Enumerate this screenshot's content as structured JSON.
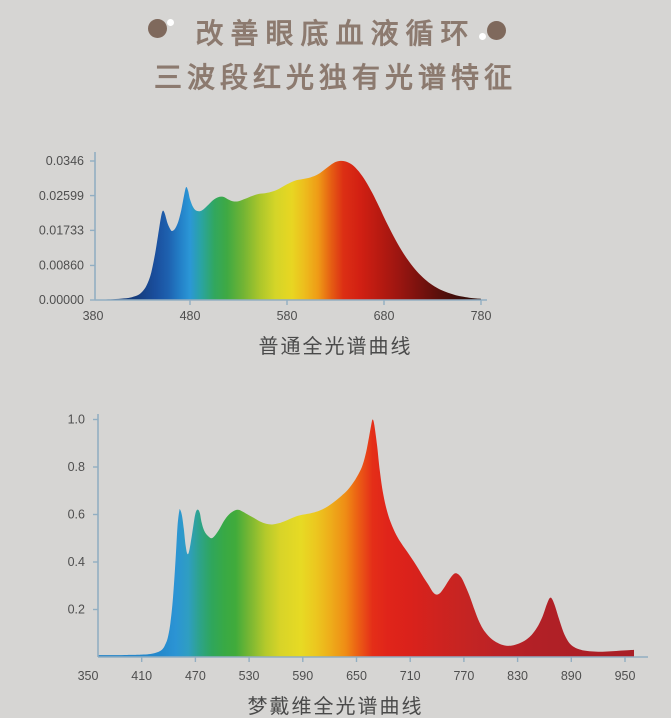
{
  "page": {
    "background": "#d6d5d3"
  },
  "header": {
    "title": "改善眼底血液循环",
    "subtitle": "三波段红光独有光谱特征",
    "text_color": "#8c7a6f",
    "deco_circle_color": "#7f695c",
    "deco_dot_color": "#ffffff"
  },
  "chart_data": [
    {
      "type": "area",
      "caption": "普通全光谱曲线",
      "xlabel": "",
      "ylabel": "",
      "x_range": [
        380,
        780
      ],
      "y_range": [
        0,
        0.0346
      ],
      "grid": false,
      "legend": "none",
      "axis_color": "#92aec2",
      "tick_label_color": "#4f4f4f",
      "x_ticks": [
        380,
        480,
        580,
        680,
        780
      ],
      "y_ticks": [
        {
          "label": "0.0346",
          "value": 0.0346
        },
        {
          "label": "0.02599",
          "value": 0.02599
        },
        {
          "label": "0.01733",
          "value": 0.01733
        },
        {
          "label": "0.00860",
          "value": 0.0086
        },
        {
          "label": "0.00000",
          "value": 0.0
        }
      ],
      "points": [
        [
          383,
          0.0001
        ],
        [
          400,
          0.0002
        ],
        [
          412,
          0.0004
        ],
        [
          420,
          0.0007
        ],
        [
          427,
          0.0013
        ],
        [
          432,
          0.0024
        ],
        [
          436,
          0.004
        ],
        [
          440,
          0.0068
        ],
        [
          444,
          0.0115
        ],
        [
          447,
          0.016
        ],
        [
          450,
          0.0205
        ],
        [
          452,
          0.0222
        ],
        [
          454,
          0.0215
        ],
        [
          457,
          0.019
        ],
        [
          460,
          0.0175
        ],
        [
          462,
          0.0172
        ],
        [
          465,
          0.0179
        ],
        [
          468,
          0.0196
        ],
        [
          471,
          0.0224
        ],
        [
          474,
          0.0262
        ],
        [
          476,
          0.0281
        ],
        [
          478,
          0.0272
        ],
        [
          480,
          0.0251
        ],
        [
          483,
          0.0232
        ],
        [
          486,
          0.0223
        ],
        [
          490,
          0.0221
        ],
        [
          494,
          0.0226
        ],
        [
          499,
          0.0237
        ],
        [
          504,
          0.0249
        ],
        [
          509,
          0.0256
        ],
        [
          514,
          0.0257
        ],
        [
          519,
          0.0251
        ],
        [
          524,
          0.0246
        ],
        [
          530,
          0.0246
        ],
        [
          537,
          0.0252
        ],
        [
          544,
          0.0259
        ],
        [
          551,
          0.0264
        ],
        [
          558,
          0.0266
        ],
        [
          565,
          0.027
        ],
        [
          572,
          0.0277
        ],
        [
          580,
          0.0288
        ],
        [
          588,
          0.0297
        ],
        [
          596,
          0.0301
        ],
        [
          604,
          0.0305
        ],
        [
          612,
          0.0313
        ],
        [
          620,
          0.0327
        ],
        [
          628,
          0.0341
        ],
        [
          634,
          0.0346
        ],
        [
          640,
          0.0345
        ],
        [
          647,
          0.0337
        ],
        [
          654,
          0.032
        ],
        [
          661,
          0.0296
        ],
        [
          668,
          0.0266
        ],
        [
          675,
          0.0232
        ],
        [
          682,
          0.0196
        ],
        [
          690,
          0.0158
        ],
        [
          698,
          0.0124
        ],
        [
          706,
          0.0095
        ],
        [
          714,
          0.0071
        ],
        [
          722,
          0.0052
        ],
        [
          730,
          0.0037
        ],
        [
          738,
          0.0026
        ],
        [
          746,
          0.0018
        ],
        [
          754,
          0.0012
        ],
        [
          762,
          0.0008
        ],
        [
          770,
          0.0005
        ],
        [
          780,
          0.0003
        ]
      ],
      "gradient_stops": [
        [
          380,
          "#14386f"
        ],
        [
          425,
          "#153c7d"
        ],
        [
          445,
          "#1a4f9e"
        ],
        [
          458,
          "#1e62b0"
        ],
        [
          470,
          "#2380c8"
        ],
        [
          480,
          "#2b97d6"
        ],
        [
          492,
          "#2aa4a0"
        ],
        [
          505,
          "#31a75f"
        ],
        [
          518,
          "#3fa943"
        ],
        [
          535,
          "#72b434"
        ],
        [
          552,
          "#abc62b"
        ],
        [
          568,
          "#d4d528"
        ],
        [
          585,
          "#e8d622"
        ],
        [
          598,
          "#edbd1d"
        ],
        [
          612,
          "#ef9b16"
        ],
        [
          626,
          "#e55c13"
        ],
        [
          638,
          "#dc2f14"
        ],
        [
          655,
          "#d22013"
        ],
        [
          675,
          "#b81a11"
        ],
        [
          695,
          "#9c1611"
        ],
        [
          715,
          "#7c120e"
        ],
        [
          735,
          "#5c100c"
        ],
        [
          755,
          "#400f0b"
        ],
        [
          780,
          "#2b0e09"
        ]
      ]
    },
    {
      "type": "area",
      "caption": "梦戴维全光谱曲线",
      "xlabel": "",
      "ylabel": "",
      "x_range": [
        350,
        960
      ],
      "y_range": [
        0,
        1.0
      ],
      "grid": false,
      "legend": "none",
      "axis_color": "#92aec2",
      "tick_label_color": "#4f4f4f",
      "x_ticks": [
        350,
        410,
        470,
        530,
        590,
        650,
        710,
        770,
        830,
        890,
        950
      ],
      "y_ticks": [
        {
          "label": "1.0",
          "value": 1.0
        },
        {
          "label": "0.8",
          "value": 0.8
        },
        {
          "label": "0.6",
          "value": 0.6
        },
        {
          "label": "0.4",
          "value": 0.4
        },
        {
          "label": "0.2",
          "value": 0.2
        }
      ],
      "points": [
        [
          361,
          0.008
        ],
        [
          380,
          0.008
        ],
        [
          400,
          0.009
        ],
        [
          410,
          0.01
        ],
        [
          418,
          0.012
        ],
        [
          424,
          0.016
        ],
        [
          429,
          0.022
        ],
        [
          433,
          0.032
        ],
        [
          436,
          0.05
        ],
        [
          439,
          0.08
        ],
        [
          442,
          0.14
        ],
        [
          445,
          0.25
        ],
        [
          448,
          0.42
        ],
        [
          450,
          0.55
        ],
        [
          452,
          0.615
        ],
        [
          453,
          0.62
        ],
        [
          455,
          0.595
        ],
        [
          457,
          0.54
        ],
        [
          459,
          0.47
        ],
        [
          461,
          0.435
        ],
        [
          463,
          0.445
        ],
        [
          466,
          0.51
        ],
        [
          469,
          0.585
        ],
        [
          471,
          0.615
        ],
        [
          473,
          0.62
        ],
        [
          475,
          0.605
        ],
        [
          477,
          0.565
        ],
        [
          480,
          0.53
        ],
        [
          484,
          0.51
        ],
        [
          488,
          0.5
        ],
        [
          492,
          0.512
        ],
        [
          497,
          0.54
        ],
        [
          502,
          0.573
        ],
        [
          507,
          0.598
        ],
        [
          512,
          0.613
        ],
        [
          517,
          0.62
        ],
        [
          522,
          0.614
        ],
        [
          528,
          0.601
        ],
        [
          535,
          0.586
        ],
        [
          542,
          0.571
        ],
        [
          549,
          0.561
        ],
        [
          556,
          0.558
        ],
        [
          563,
          0.563
        ],
        [
          571,
          0.574
        ],
        [
          579,
          0.587
        ],
        [
          586,
          0.596
        ],
        [
          593,
          0.601
        ],
        [
          601,
          0.607
        ],
        [
          609,
          0.617
        ],
        [
          617,
          0.632
        ],
        [
          625,
          0.653
        ],
        [
          633,
          0.678
        ],
        [
          640,
          0.703
        ],
        [
          646,
          0.732
        ],
        [
          651,
          0.762
        ],
        [
          656,
          0.8
        ],
        [
          660,
          0.85
        ],
        [
          663,
          0.905
        ],
        [
          666,
          0.968
        ],
        [
          668,
          1.0
        ],
        [
          670,
          0.975
        ],
        [
          673,
          0.89
        ],
        [
          676,
          0.785
        ],
        [
          680,
          0.682
        ],
        [
          685,
          0.603
        ],
        [
          690,
          0.55
        ],
        [
          696,
          0.503
        ],
        [
          702,
          0.468
        ],
        [
          708,
          0.436
        ],
        [
          714,
          0.402
        ],
        [
          720,
          0.366
        ],
        [
          726,
          0.329
        ],
        [
          731,
          0.3
        ],
        [
          735,
          0.275
        ],
        [
          739,
          0.263
        ],
        [
          743,
          0.268
        ],
        [
          748,
          0.292
        ],
        [
          753,
          0.322
        ],
        [
          757,
          0.343
        ],
        [
          760,
          0.352
        ],
        [
          763,
          0.35
        ],
        [
          767,
          0.335
        ],
        [
          771,
          0.305
        ],
        [
          776,
          0.26
        ],
        [
          781,
          0.208
        ],
        [
          786,
          0.158
        ],
        [
          791,
          0.12
        ],
        [
          797,
          0.09
        ],
        [
          803,
          0.07
        ],
        [
          809,
          0.057
        ],
        [
          815,
          0.049
        ],
        [
          821,
          0.047
        ],
        [
          827,
          0.051
        ],
        [
          834,
          0.061
        ],
        [
          841,
          0.077
        ],
        [
          847,
          0.099
        ],
        [
          853,
          0.132
        ],
        [
          858,
          0.172
        ],
        [
          862,
          0.215
        ],
        [
          865,
          0.243
        ],
        [
          867,
          0.25
        ],
        [
          869,
          0.241
        ],
        [
          872,
          0.212
        ],
        [
          876,
          0.163
        ],
        [
          880,
          0.117
        ],
        [
          884,
          0.082
        ],
        [
          888,
          0.058
        ],
        [
          893,
          0.042
        ],
        [
          899,
          0.032
        ],
        [
          906,
          0.026
        ],
        [
          915,
          0.023
        ],
        [
          925,
          0.022
        ],
        [
          935,
          0.024
        ],
        [
          945,
          0.027
        ],
        [
          955,
          0.029
        ],
        [
          960,
          0.03
        ]
      ],
      "gradient_stops": [
        [
          350,
          "#2282c6"
        ],
        [
          430,
          "#2589cc"
        ],
        [
          448,
          "#2b94d4"
        ],
        [
          462,
          "#2f9ec2"
        ],
        [
          475,
          "#2da389"
        ],
        [
          488,
          "#2fa65c"
        ],
        [
          502,
          "#38a945"
        ],
        [
          515,
          "#41ab3b"
        ],
        [
          532,
          "#7db832"
        ],
        [
          548,
          "#b3c92b"
        ],
        [
          565,
          "#d8d428"
        ],
        [
          588,
          "#e7da24"
        ],
        [
          605,
          "#ecc71f"
        ],
        [
          622,
          "#eeab1a"
        ],
        [
          638,
          "#ef8c15"
        ],
        [
          650,
          "#ec6414"
        ],
        [
          660,
          "#e84617"
        ],
        [
          668,
          "#e42e18"
        ],
        [
          685,
          "#e0241a"
        ],
        [
          710,
          "#da221b"
        ],
        [
          740,
          "#cf231f"
        ],
        [
          775,
          "#c42423"
        ],
        [
          810,
          "#bb2226"
        ],
        [
          850,
          "#b22026"
        ],
        [
          900,
          "#ad1f26"
        ],
        [
          960,
          "#a91f26"
        ]
      ]
    }
  ]
}
